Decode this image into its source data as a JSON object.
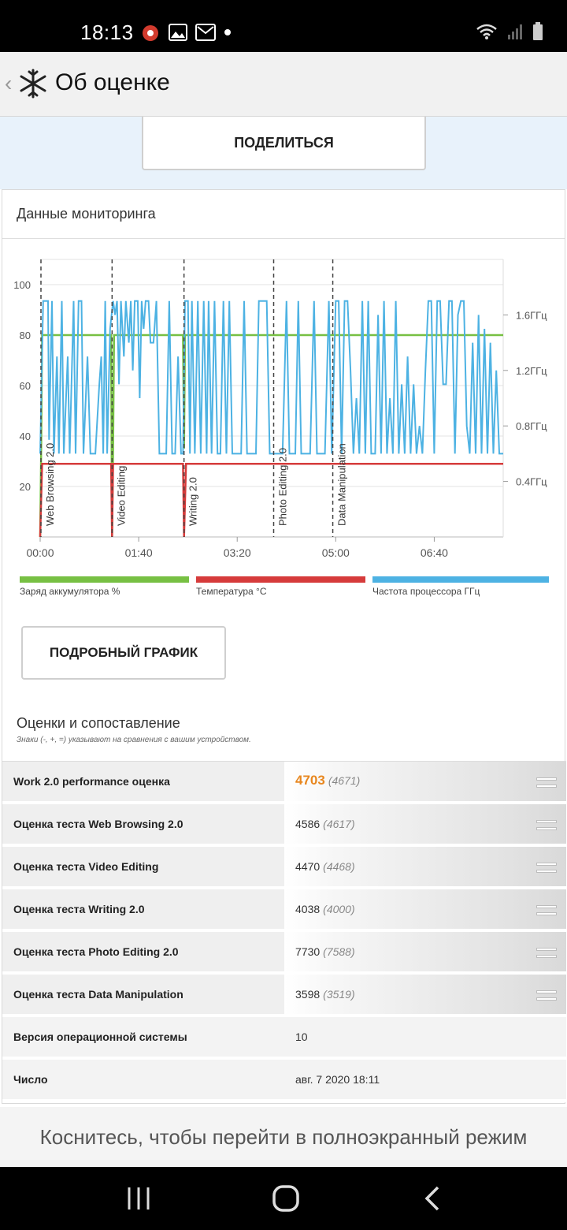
{
  "status_bar": {
    "time": "18:13"
  },
  "app_bar": {
    "title": "Об оценке"
  },
  "share": {
    "label": "ПОДЕЛИТЬСЯ"
  },
  "monitoring": {
    "title": "Данные мониторинга",
    "detail_button": "ПОДРОБНЫЙ ГРАФИК",
    "legend": [
      {
        "label": "Заряд аккумулятора %",
        "color": "#77c043"
      },
      {
        "label": "Температура °C",
        "color": "#d63b3b"
      },
      {
        "label": "Частота процессора ГГц",
        "color": "#4db2e3"
      }
    ]
  },
  "chart_data": {
    "type": "line",
    "x_ticks": [
      "00:00",
      "01:40",
      "03:20",
      "05:00",
      "06:40"
    ],
    "x_range_minutes": [
      0,
      470
    ],
    "y_left_ticks": [
      "20",
      "40",
      "60",
      "80",
      "100"
    ],
    "y_left_range": [
      0,
      110
    ],
    "y_right_ticks": [
      "0.4ГГц",
      "0.8ГГц",
      "1.2ГГц",
      "1.6ГГц"
    ],
    "y_right_range_ghz": [
      0,
      2.0
    ],
    "phase_markers": [
      {
        "label": "Web Browsing 2.0",
        "x": 0
      },
      {
        "label": "Video Editing",
        "x": 73
      },
      {
        "label": "Writing 2.0",
        "x": 146
      },
      {
        "label": "Photo Editing 2.0",
        "x": 237
      },
      {
        "label": "Data Manipulation",
        "x": 297
      }
    ],
    "series": [
      {
        "name": "Заряд аккумулятора %",
        "axis": "left",
        "color": "#77c043",
        "points": [
          [
            0,
            0
          ],
          [
            1,
            35
          ],
          [
            2,
            80
          ],
          [
            72,
            80
          ],
          [
            73,
            0
          ],
          [
            74,
            35
          ],
          [
            75,
            80
          ],
          [
            145,
            80
          ],
          [
            146,
            35
          ],
          [
            147,
            80
          ],
          [
            470,
            80
          ]
        ]
      },
      {
        "name": "Температура °C",
        "axis": "left",
        "color": "#d63b3b",
        "points": [
          [
            0,
            0
          ],
          [
            2,
            29
          ],
          [
            72,
            29
          ],
          [
            73,
            0
          ],
          [
            74,
            29
          ],
          [
            145,
            29
          ],
          [
            146,
            0
          ],
          [
            148,
            29
          ],
          [
            470,
            29
          ]
        ]
      },
      {
        "name": "Частота процессора ГГц",
        "axis": "right",
        "color": "#4db2e3",
        "points": [
          [
            0,
            0.6
          ],
          [
            3,
            1.7
          ],
          [
            8,
            1.7
          ],
          [
            9,
            0.7
          ],
          [
            12,
            1.7
          ],
          [
            14,
            0.6
          ],
          [
            17,
            1.3
          ],
          [
            19,
            0.6
          ],
          [
            22,
            1.7
          ],
          [
            24,
            0.6
          ],
          [
            28,
            1.3
          ],
          [
            30,
            0.6
          ],
          [
            34,
            1.7
          ],
          [
            36,
            0.6
          ],
          [
            39,
            1.7
          ],
          [
            42,
            1.7
          ],
          [
            44,
            0.6
          ],
          [
            48,
            1.3
          ],
          [
            51,
            0.6
          ],
          [
            56,
            0.6
          ],
          [
            60,
            1.1
          ],
          [
            62,
            1.3
          ],
          [
            64,
            0.6
          ],
          [
            66,
            1.7
          ],
          [
            68,
            0.6
          ],
          [
            71,
            1.5
          ],
          [
            74,
            1.7
          ],
          [
            76,
            1.6
          ],
          [
            78,
            1.7
          ],
          [
            80,
            1.1
          ],
          [
            82,
            1.7
          ],
          [
            85,
            1.3
          ],
          [
            87,
            1.7
          ],
          [
            90,
            1.4
          ],
          [
            92,
            1.7
          ],
          [
            94,
            1.2
          ],
          [
            96,
            1.7
          ],
          [
            99,
            1.7
          ],
          [
            101,
            1.0
          ],
          [
            103,
            1.7
          ],
          [
            105,
            1.5
          ],
          [
            107,
            1.7
          ],
          [
            110,
            1.7
          ],
          [
            112,
            1.4
          ],
          [
            115,
            1.4
          ],
          [
            118,
            1.7
          ],
          [
            121,
            0.6
          ],
          [
            124,
            0.6
          ],
          [
            128,
            0.6
          ],
          [
            131,
            1.7
          ],
          [
            134,
            0.6
          ],
          [
            137,
            0.6
          ],
          [
            140,
            1.3
          ],
          [
            143,
            0.6
          ],
          [
            145,
            0.6
          ],
          [
            147,
            1.7
          ],
          [
            150,
            1.7
          ],
          [
            152,
            0.6
          ],
          [
            154,
            1.7
          ],
          [
            157,
            0.6
          ],
          [
            160,
            1.7
          ],
          [
            163,
            0.6
          ],
          [
            166,
            1.7
          ],
          [
            169,
            0.6
          ],
          [
            171,
            1.7
          ],
          [
            174,
            0.6
          ],
          [
            177,
            1.7
          ],
          [
            180,
            0.6
          ],
          [
            183,
            0.6
          ],
          [
            186,
            1.7
          ],
          [
            189,
            0.6
          ],
          [
            192,
            1.7
          ],
          [
            195,
            0.6
          ],
          [
            199,
            0.6
          ],
          [
            204,
            0.6
          ],
          [
            207,
            1.7
          ],
          [
            210,
            0.6
          ],
          [
            214,
            0.6
          ],
          [
            219,
            0.6
          ],
          [
            222,
            1.7
          ],
          [
            226,
            1.7
          ],
          [
            230,
            1.7
          ],
          [
            233,
            0.6
          ],
          [
            238,
            0.6
          ],
          [
            242,
            0.6
          ],
          [
            246,
            0.6
          ],
          [
            250,
            1.7
          ],
          [
            253,
            0.6
          ],
          [
            256,
            0.6
          ],
          [
            259,
            0.6
          ],
          [
            262,
            1.7
          ],
          [
            265,
            0.6
          ],
          [
            270,
            0.6
          ],
          [
            274,
            0.6
          ],
          [
            278,
            1.7
          ],
          [
            281,
            0.6
          ],
          [
            285,
            0.6
          ],
          [
            289,
            0.6
          ],
          [
            293,
            1.7
          ],
          [
            296,
            0.6
          ],
          [
            300,
            1.7
          ],
          [
            303,
            1.7
          ],
          [
            306,
            0.6
          ],
          [
            309,
            1.7
          ],
          [
            312,
            1.7
          ],
          [
            315,
            1.2
          ],
          [
            318,
            0.6
          ],
          [
            321,
            1.0
          ],
          [
            324,
            0.6
          ],
          [
            327,
            1.7
          ],
          [
            330,
            0.6
          ],
          [
            333,
            1.7
          ],
          [
            336,
            0.6
          ],
          [
            340,
            0.6
          ],
          [
            343,
            1.6
          ],
          [
            346,
            0.6
          ],
          [
            349,
            1.7
          ],
          [
            352,
            0.6
          ],
          [
            355,
            1.0
          ],
          [
            358,
            0.6
          ],
          [
            361,
            1.7
          ],
          [
            364,
            0.6
          ],
          [
            367,
            1.1
          ],
          [
            370,
            0.6
          ],
          [
            373,
            1.3
          ],
          [
            376,
            0.6
          ],
          [
            379,
            1.1
          ],
          [
            382,
            0.6
          ],
          [
            385,
            0.8
          ],
          [
            388,
            0.6
          ],
          [
            391,
            1.2
          ],
          [
            394,
            1.7
          ],
          [
            397,
            1.7
          ],
          [
            400,
            0.6
          ],
          [
            403,
            1.7
          ],
          [
            406,
            1.7
          ],
          [
            409,
            1.1
          ],
          [
            412,
            1.1
          ],
          [
            415,
            1.7
          ],
          [
            418,
            1.7
          ],
          [
            421,
            0.6
          ],
          [
            424,
            1.6
          ],
          [
            427,
            1.7
          ],
          [
            430,
            1.7
          ],
          [
            433,
            0.8
          ],
          [
            436,
            0.6
          ],
          [
            439,
            1.4
          ],
          [
            442,
            0.6
          ],
          [
            445,
            1.6
          ],
          [
            448,
            0.6
          ],
          [
            451,
            1.5
          ],
          [
            454,
            0.6
          ],
          [
            457,
            1.4
          ],
          [
            460,
            0.6
          ],
          [
            463,
            1.2
          ],
          [
            466,
            0.6
          ],
          [
            470,
            0.6
          ]
        ]
      }
    ]
  },
  "scores": {
    "title": "Оценки и сопоставление",
    "note": "Знаки (-, +, =) указывают на сравнения с вашим устройством.",
    "rows": [
      {
        "label": "Work 2.0 performance оценка",
        "value": "4703",
        "ref": "(4671)",
        "type": "main"
      },
      {
        "label": "Оценка теста Web Browsing 2.0",
        "value": "4586",
        "ref": "(4617)",
        "type": "score"
      },
      {
        "label": "Оценка теста Video Editing",
        "value": "4470",
        "ref": "(4468)",
        "type": "score"
      },
      {
        "label": "Оценка теста Writing 2.0",
        "value": "4038",
        "ref": "(4000)",
        "type": "score"
      },
      {
        "label": "Оценка теста Photo Editing 2.0",
        "value": "7730",
        "ref": "(7588)",
        "type": "score"
      },
      {
        "label": "Оценка теста Data Manipulation",
        "value": "3598",
        "ref": "(3519)",
        "type": "score"
      },
      {
        "label": "Версия операционной системы",
        "value": "10",
        "ref": "",
        "type": "info"
      },
      {
        "label": "Число",
        "value": "авг. 7 2020 18:11",
        "ref": "",
        "type": "info"
      }
    ]
  },
  "banner": {
    "text": "Коснитесь, чтобы перейти в полноэкранный режим"
  }
}
